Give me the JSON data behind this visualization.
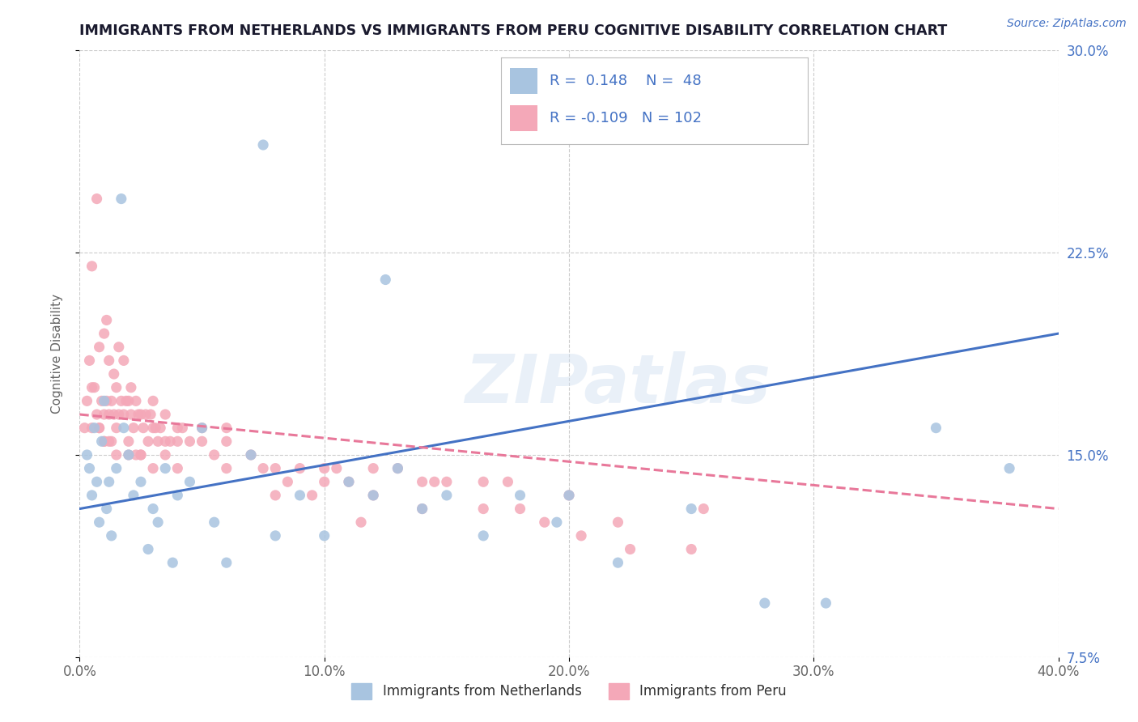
{
  "title": "IMMIGRANTS FROM NETHERLANDS VS IMMIGRANTS FROM PERU COGNITIVE DISABILITY CORRELATION CHART",
  "source": "Source: ZipAtlas.com",
  "ylabel": "Cognitive Disability",
  "xlim": [
    0.0,
    40.0
  ],
  "ylim": [
    7.5,
    30.0
  ],
  "xticks": [
    0.0,
    10.0,
    20.0,
    30.0,
    40.0
  ],
  "yticks": [
    7.5,
    15.0,
    22.5,
    30.0
  ],
  "netherlands_R": 0.148,
  "netherlands_N": 48,
  "peru_R": -0.109,
  "peru_N": 102,
  "netherlands_color": "#a8c4e0",
  "peru_color": "#f4a8b8",
  "netherlands_line_color": "#4472c4",
  "peru_line_color": "#e8789a",
  "title_color": "#1a1a2e",
  "source_color": "#4472c4",
  "legend_text_color": "#4472c4",
  "watermark": "ZIPatlas",
  "nl_trend_start_y": 13.0,
  "nl_trend_end_y": 19.5,
  "pe_trend_start_y": 16.5,
  "pe_trend_end_y": 13.0,
  "netherlands_x": [
    0.3,
    0.4,
    0.5,
    0.6,
    0.7,
    0.8,
    0.9,
    1.0,
    1.1,
    1.2,
    1.3,
    1.5,
    1.7,
    1.8,
    2.0,
    2.2,
    2.5,
    2.8,
    3.0,
    3.2,
    3.5,
    3.8,
    4.0,
    4.5,
    5.0,
    5.5,
    6.0,
    7.0,
    7.5,
    8.0,
    9.0,
    10.0,
    11.0,
    12.0,
    13.0,
    14.0,
    15.0,
    16.5,
    18.0,
    20.0,
    22.0,
    25.0,
    30.5,
    35.0,
    38.0,
    12.5,
    19.5,
    28.0
  ],
  "netherlands_y": [
    15.0,
    14.5,
    13.5,
    16.0,
    14.0,
    12.5,
    15.5,
    17.0,
    13.0,
    14.0,
    12.0,
    14.5,
    24.5,
    16.0,
    15.0,
    13.5,
    14.0,
    11.5,
    13.0,
    12.5,
    14.5,
    11.0,
    13.5,
    14.0,
    16.0,
    12.5,
    11.0,
    15.0,
    26.5,
    12.0,
    13.5,
    12.0,
    14.0,
    13.5,
    14.5,
    13.0,
    13.5,
    12.0,
    13.5,
    13.5,
    11.0,
    13.0,
    9.5,
    16.0,
    14.5,
    21.5,
    12.5,
    9.5
  ],
  "peru_x": [
    0.2,
    0.3,
    0.4,
    0.5,
    0.5,
    0.6,
    0.7,
    0.7,
    0.8,
    0.8,
    0.9,
    1.0,
    1.0,
    1.0,
    1.1,
    1.1,
    1.2,
    1.2,
    1.3,
    1.3,
    1.4,
    1.4,
    1.5,
    1.5,
    1.6,
    1.6,
    1.7,
    1.8,
    1.8,
    1.9,
    2.0,
    2.0,
    2.1,
    2.1,
    2.2,
    2.3,
    2.4,
    2.5,
    2.5,
    2.6,
    2.7,
    2.8,
    2.9,
    3.0,
    3.0,
    3.1,
    3.2,
    3.3,
    3.5,
    3.5,
    3.7,
    4.0,
    4.0,
    4.2,
    4.5,
    5.0,
    5.0,
    5.5,
    6.0,
    6.0,
    7.0,
    7.5,
    8.0,
    8.5,
    9.0,
    10.0,
    11.0,
    12.0,
    13.0,
    14.0,
    15.0,
    16.5,
    0.5,
    0.8,
    1.0,
    1.2,
    1.5,
    2.0,
    2.3,
    2.5,
    3.0,
    3.5,
    4.0,
    6.0,
    8.0,
    10.0,
    12.0,
    14.0,
    16.5,
    18.0,
    20.0,
    22.0,
    25.0,
    10.5,
    14.5,
    11.5,
    19.0,
    20.5,
    22.5,
    25.5,
    17.5,
    9.5
  ],
  "peru_y": [
    16.0,
    17.0,
    18.5,
    16.0,
    22.0,
    17.5,
    16.5,
    24.5,
    16.0,
    19.0,
    17.0,
    16.5,
    15.5,
    19.5,
    17.0,
    20.0,
    16.5,
    18.5,
    17.0,
    15.5,
    16.5,
    18.0,
    16.0,
    17.5,
    16.5,
    19.0,
    17.0,
    16.5,
    18.5,
    17.0,
    17.0,
    15.5,
    16.5,
    17.5,
    16.0,
    17.0,
    16.5,
    16.5,
    15.0,
    16.0,
    16.5,
    15.5,
    16.5,
    16.0,
    17.0,
    16.0,
    15.5,
    16.0,
    16.5,
    15.5,
    15.5,
    16.0,
    15.5,
    16.0,
    15.5,
    15.5,
    16.0,
    15.0,
    15.5,
    16.0,
    15.0,
    14.5,
    14.5,
    14.0,
    14.5,
    14.5,
    14.0,
    14.5,
    14.5,
    14.0,
    14.0,
    14.0,
    17.5,
    16.0,
    15.5,
    15.5,
    15.0,
    15.0,
    15.0,
    15.0,
    14.5,
    15.0,
    14.5,
    14.5,
    13.5,
    14.0,
    13.5,
    13.0,
    13.0,
    13.0,
    13.5,
    12.5,
    11.5,
    14.5,
    14.0,
    12.5,
    12.5,
    12.0,
    11.5,
    13.0,
    14.0,
    13.5
  ]
}
